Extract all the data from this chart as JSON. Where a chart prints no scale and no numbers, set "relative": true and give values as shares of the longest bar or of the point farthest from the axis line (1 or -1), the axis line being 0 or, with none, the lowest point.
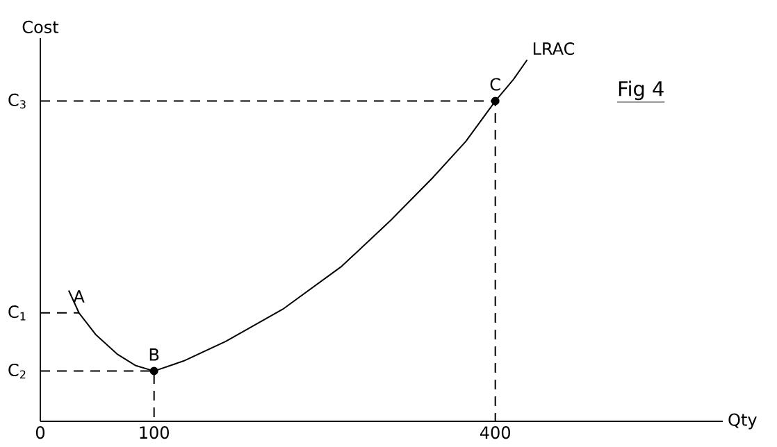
{
  "chart_data": {
    "type": "line",
    "relative": true,
    "xlabel": "Qty",
    "ylabel": "Cost",
    "xlim": [
      0,
      600
    ],
    "xticks": [
      0,
      100,
      400
    ],
    "series": [
      {
        "name": "LRAC",
        "color": "#000000",
        "marker": "none",
        "line_style": "solid",
        "x": [
          25,
          34,
          49,
          68,
          84,
          100,
          126,
          163,
          214,
          265,
          308,
          345,
          374,
          400,
          416,
          428
        ],
        "values": [
          0.362,
          0.3,
          0.239,
          0.185,
          0.154,
          0.139,
          0.167,
          0.221,
          0.312,
          0.429,
          0.556,
          0.674,
          0.774,
          0.886,
          0.946,
          1
        ]
      },
      {
        "type": "scatter",
        "color": "#000000",
        "marker": "circle",
        "x": [
          100,
          400
        ],
        "values": [
          0.139,
          0.886
        ]
      },
      {
        "color": "#000000",
        "marker": "none",
        "line_style": "dashed",
        "x": [
          0,
          34
        ],
        "values": [
          0.3,
          0.3
        ]
      },
      {
        "color": "#000000",
        "marker": "none",
        "line_style": "dashed",
        "x": [
          0,
          100,
          100
        ],
        "values": [
          0.139,
          0.139,
          0
        ]
      },
      {
        "color": "#000000",
        "marker": "none",
        "line_style": "dashed",
        "x": [
          0,
          400,
          400
        ],
        "values": [
          0.886,
          0.886,
          0
        ]
      }
    ],
    "annotations": [
      {
        "text": "A",
        "x": 34,
        "y": 0.3
      },
      {
        "text": "B",
        "x": 100,
        "y": 0.139
      },
      {
        "text": "C",
        "x": 400,
        "y": 0.886
      },
      {
        "text": "C$_{1}$",
        "x": 0,
        "y": 0.3
      },
      {
        "text": "C$_{2}$",
        "x": 0,
        "y": 0.139
      },
      {
        "text": "C$_{3}$",
        "x": 0,
        "y": 0.886
      },
      "Fig 4"
    ]
  }
}
